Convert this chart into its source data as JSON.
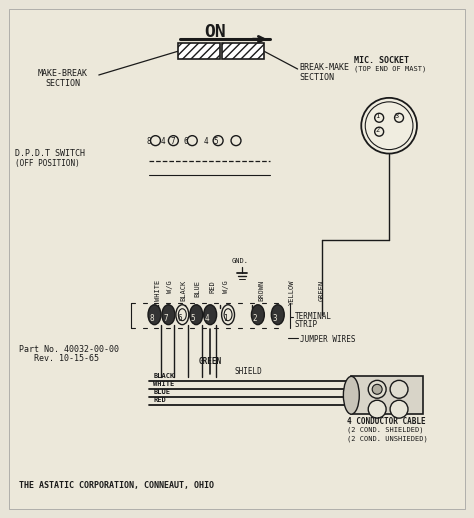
{
  "bg_color": "#e8e4d8",
  "line_color": "#1a1a1a",
  "text_color": "#1a1a1a",
  "labels": {
    "on": "ON",
    "make_break1": "MAKE-BREAK",
    "make_break2": "SECTION",
    "break_make1": "BREAK-MAKE",
    "break_make2": "SECTION",
    "mic_socket1": "MIC. SOCKET",
    "mic_socket2": "(TOP END OF MAST)",
    "dpdt1": "D.P.D.T SWITCH",
    "dpdt2": "(OFF POSITION)",
    "part_no1": "Part No. 40032-00-00",
    "part_no2": "   Rev. 10-15-65",
    "terminal_strip1": "TERMINAL",
    "terminal_strip2": "STRIP",
    "jumper_wires": "JUMPER WIRES",
    "shield": "SHIELD",
    "green_label": "GREEN",
    "conductor_cable1": "4 CONDUCTOR CABLE",
    "conductor_cable2": "(2 COND. SHIELDED)",
    "conductor_cable3": "(2 COND. UNSHIEDED)",
    "company": "THE ASTATIC CORPORATION, CONNEAUT, OHIO",
    "wire_labels": [
      "WHITE",
      "W/G",
      "BLACK",
      "BLUE",
      "RED",
      "W/G",
      "BROWN",
      "YELLOW",
      "GREEN"
    ],
    "cable_colors": [
      "BLACK",
      "WHITE",
      "BLUE",
      "RED"
    ],
    "terminal_nums": [
      "8",
      "7",
      "6",
      "5",
      "4",
      "1",
      "2",
      "3"
    ],
    "gnd": "GND."
  }
}
